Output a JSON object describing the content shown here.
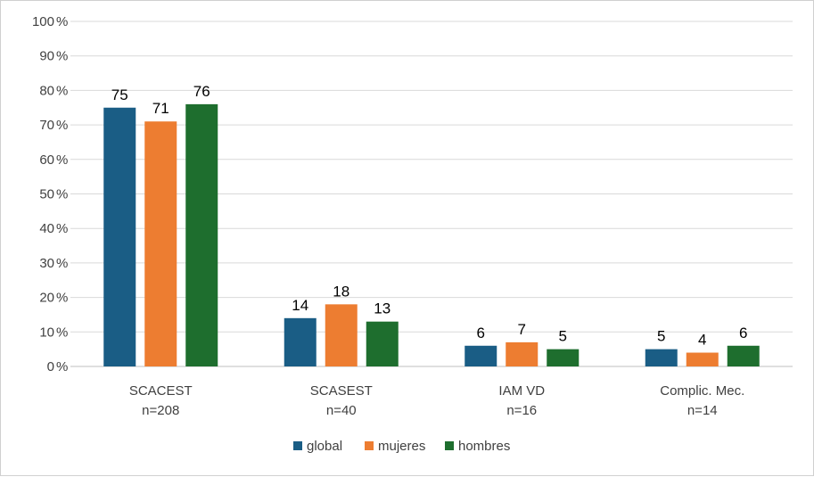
{
  "chart_data": {
    "type": "bar",
    "categories": [
      [
        "SCACEST",
        "n=208"
      ],
      [
        "SCASEST",
        "n=40"
      ],
      [
        "IAM VD",
        "n=16"
      ],
      [
        "Complic. Mec.",
        "n=14"
      ]
    ],
    "series": [
      {
        "name": "global",
        "color": "#1a5d85",
        "values": [
          75,
          14,
          6,
          5
        ]
      },
      {
        "name": "mujeres",
        "color": "#ed7d31",
        "values": [
          71,
          18,
          7,
          4
        ]
      },
      {
        "name": "hombres",
        "color": "#1e6e2e",
        "values": [
          76,
          13,
          5,
          6
        ]
      }
    ],
    "ylim": [
      0,
      100
    ],
    "yticks": [
      0,
      10,
      20,
      30,
      40,
      50,
      60,
      70,
      80,
      90,
      100
    ],
    "ytick_suffix": "%",
    "grid": true,
    "legend_position": "bottom",
    "data_labels": true
  }
}
